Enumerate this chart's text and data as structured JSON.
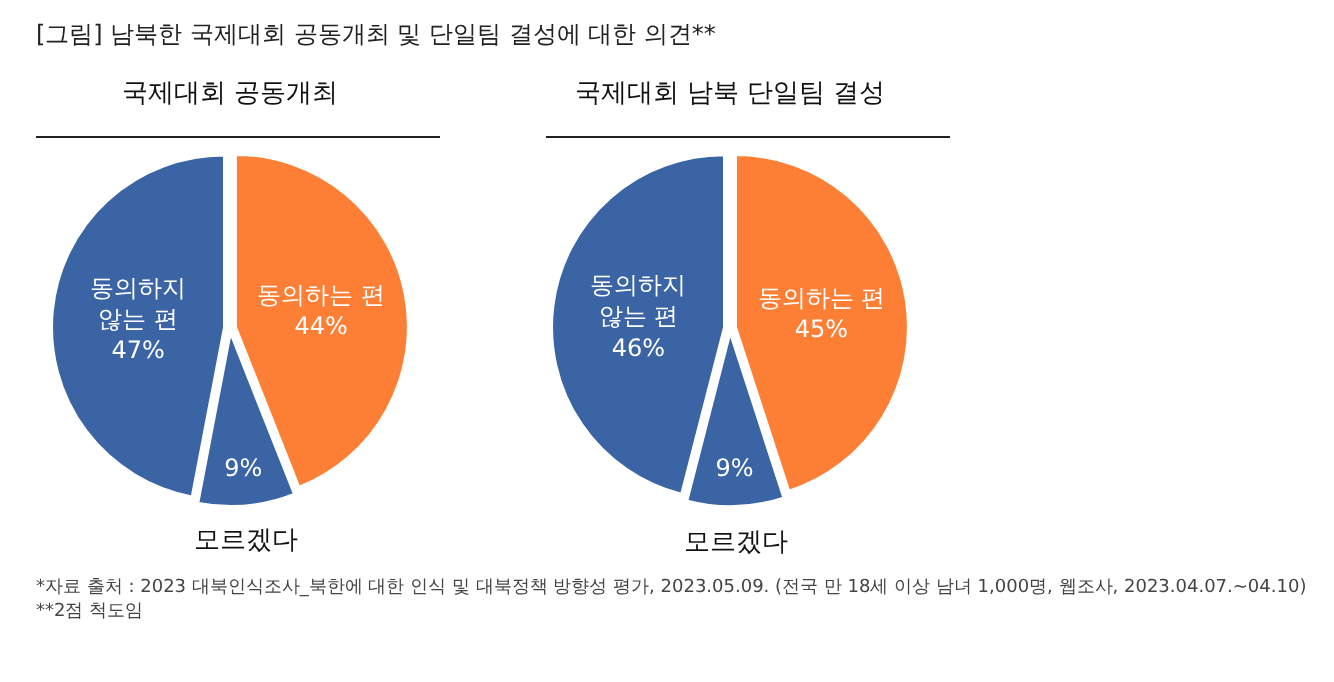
{
  "chart_data": [
    {
      "type": "pie",
      "title": "국제대회 공동개최",
      "categories": [
        "동의하는 편",
        "모르겠다",
        "동의하지 않는 편"
      ],
      "values": [
        44,
        9,
        47
      ],
      "colors": [
        "#fd7f35",
        "#3a64a4",
        "#3a64a4"
      ],
      "value_labels": [
        "44%",
        "9%",
        "47%"
      ],
      "annotations": [
        "[그림] 남북한 국제대회 공동개최 및 단일팀 결성에 대한 의견**",
        "*자료 출처 : 2023 대북인식조사_북한에 대한 인식 및 대북정책 방향성 평가, 2023.05.09. (전국 만 18세 이상 남녀 1,000명, 웹조사, 2023.04.07.~04.10)",
        "**2점 척도임"
      ]
    },
    {
      "type": "pie",
      "title": "국제대회 남북 단일팀 결성",
      "categories": [
        "동의하는 편",
        "모르겠다",
        "동의하지 않는 편"
      ],
      "values": [
        45,
        9,
        46
      ],
      "colors": [
        "#fd7f35",
        "#3a64a4",
        "#3a64a4"
      ],
      "value_labels": [
        "45%",
        "9%",
        "46%"
      ]
    }
  ]
}
